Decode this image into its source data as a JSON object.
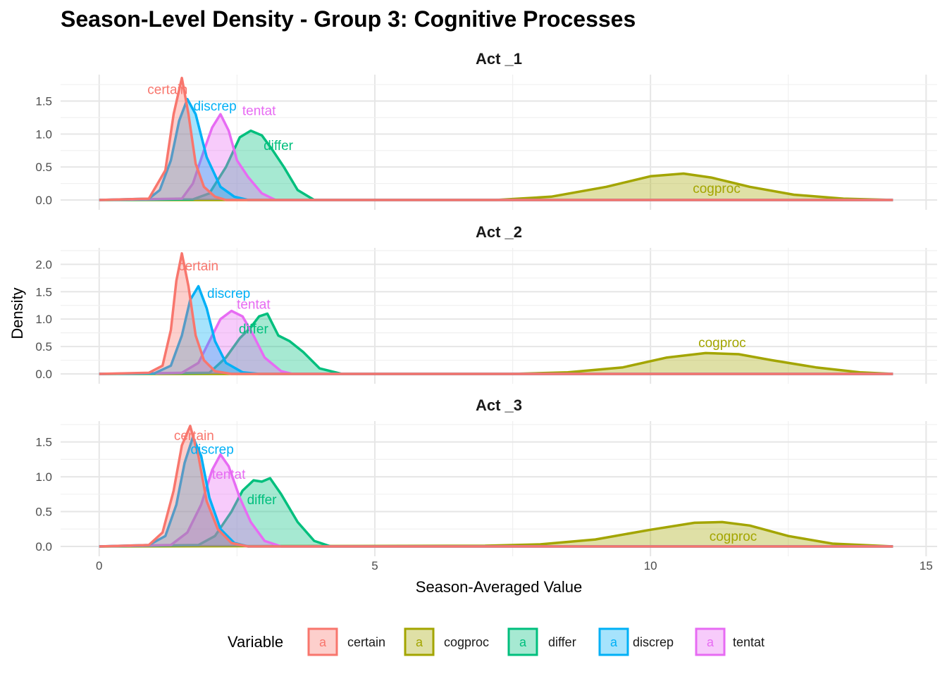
{
  "chart_data": {
    "type": "area",
    "title": "Season-Level Density -  Group 3: Cognitive Processes",
    "xlabel": "Season-Averaged Value",
    "ylabel": "Density",
    "xlim": [
      -0.7,
      15.2
    ],
    "x_ticks": [
      "0",
      "5",
      "10",
      "15"
    ],
    "grid": true,
    "legend_position": "bottom",
    "legend": {
      "title": "Variable",
      "key_letter": "a",
      "items": [
        "certain",
        "cogproc",
        "differ",
        "discrep",
        "tentat"
      ]
    },
    "colors": {
      "certain": "#F8766D",
      "cogproc": "#A3A500",
      "differ": "#00BF7D",
      "discrep": "#00B0F6",
      "tentat": "#E76BF3"
    },
    "panels": [
      {
        "strip": "Act _1",
        "ylim": [
          0,
          1.9
        ],
        "y_ticks": [
          "0.0",
          "0.5",
          "1.0",
          "1.5"
        ],
        "series": [
          {
            "name": "certain",
            "x": [
              0,
              0.9,
              1.2,
              1.35,
              1.5,
              1.62,
              1.75,
              1.9,
              2.1,
              2.3,
              14.4
            ],
            "values": [
              0,
              0.02,
              0.45,
              1.3,
              1.85,
              1.3,
              0.55,
              0.2,
              0.05,
              0,
              0
            ]
          },
          {
            "name": "discrep",
            "x": [
              0,
              0.9,
              1.1,
              1.3,
              1.45,
              1.6,
              1.75,
              1.95,
              2.2,
              2.45,
              2.7,
              14.4
            ],
            "values": [
              0,
              0.02,
              0.15,
              0.6,
              1.2,
              1.53,
              1.3,
              0.65,
              0.2,
              0.05,
              0,
              0
            ]
          },
          {
            "name": "tentat",
            "x": [
              0,
              1.5,
              1.7,
              1.9,
              2.05,
              2.2,
              2.35,
              2.5,
              2.7,
              2.95,
              3.2,
              14.4
            ],
            "values": [
              0,
              0.02,
              0.25,
              0.75,
              1.1,
              1.3,
              1.05,
              0.6,
              0.35,
              0.1,
              0,
              0
            ]
          },
          {
            "name": "differ",
            "x": [
              0,
              1.7,
              2.0,
              2.3,
              2.55,
              2.75,
              2.95,
              3.15,
              3.35,
              3.6,
              3.9,
              14.4
            ],
            "values": [
              0,
              0.01,
              0.1,
              0.5,
              0.95,
              1.05,
              0.98,
              0.75,
              0.5,
              0.15,
              0,
              0
            ]
          },
          {
            "name": "cogproc",
            "x": [
              0,
              7.2,
              8.2,
              9.2,
              10.0,
              10.6,
              11.1,
              11.8,
              12.6,
              13.5,
              14.4
            ],
            "values": [
              0,
              0.0,
              0.05,
              0.2,
              0.36,
              0.4,
              0.34,
              0.2,
              0.08,
              0.02,
              0
            ]
          }
        ],
        "labels": [
          {
            "text": "certain",
            "series": "certain",
            "x": 1.24,
            "y": 1.68
          },
          {
            "text": "discrep",
            "series": "discrep",
            "x": 2.1,
            "y": 1.43
          },
          {
            "text": "tentat",
            "series": "tentat",
            "x": 2.9,
            "y": 1.36
          },
          {
            "text": "differ",
            "series": "differ",
            "x": 3.25,
            "y": 0.83
          },
          {
            "text": "cogproc",
            "series": "cogproc",
            "x": 11.2,
            "y": 0.18
          }
        ]
      },
      {
        "strip": "Act _2",
        "ylim": [
          0,
          2.3
        ],
        "y_ticks": [
          "0.0",
          "0.5",
          "1.0",
          "1.5",
          "2.0"
        ],
        "series": [
          {
            "name": "certain",
            "x": [
              0,
              0.9,
              1.15,
              1.3,
              1.4,
              1.5,
              1.62,
              1.75,
              1.9,
              2.1,
              2.4,
              14.4
            ],
            "values": [
              0,
              0.02,
              0.15,
              0.8,
              1.7,
              2.2,
              1.6,
              0.7,
              0.25,
              0.05,
              0,
              0
            ]
          },
          {
            "name": "discrep",
            "x": [
              0,
              1.0,
              1.3,
              1.5,
              1.65,
              1.8,
              1.95,
              2.1,
              2.3,
              2.6,
              2.9,
              14.4
            ],
            "values": [
              0,
              0.01,
              0.15,
              0.7,
              1.35,
              1.6,
              1.2,
              0.6,
              0.2,
              0.03,
              0,
              0
            ]
          },
          {
            "name": "tentat",
            "x": [
              0,
              1.5,
              1.8,
              2.0,
              2.2,
              2.4,
              2.6,
              2.8,
              3.0,
              3.3,
              3.5,
              14.4
            ],
            "values": [
              0,
              0.02,
              0.2,
              0.6,
              1.0,
              1.15,
              1.05,
              0.7,
              0.3,
              0.05,
              0,
              0
            ]
          },
          {
            "name": "differ",
            "x": [
              0,
              2.0,
              2.3,
              2.55,
              2.75,
              2.9,
              3.05,
              3.25,
              3.45,
              3.7,
              4.0,
              4.4,
              14.4
            ],
            "values": [
              0,
              0.02,
              0.3,
              0.65,
              0.85,
              1.05,
              1.1,
              0.7,
              0.6,
              0.4,
              0.1,
              0,
              0
            ]
          },
          {
            "name": "cogproc",
            "x": [
              0,
              7.5,
              8.5,
              9.5,
              10.3,
              11.0,
              11.6,
              12.2,
              13.0,
              13.8,
              14.4
            ],
            "values": [
              0,
              0.0,
              0.03,
              0.12,
              0.3,
              0.38,
              0.36,
              0.25,
              0.12,
              0.03,
              0
            ]
          }
        ],
        "labels": [
          {
            "text": "certain",
            "series": "certain",
            "x": 1.8,
            "y": 1.98
          },
          {
            "text": "discrep",
            "series": "discrep",
            "x": 2.35,
            "y": 1.48
          },
          {
            "text": "tentat",
            "series": "tentat",
            "x": 2.8,
            "y": 1.28
          },
          {
            "text": "differ",
            "series": "differ",
            "x": 2.8,
            "y": 0.83
          },
          {
            "text": "cogproc",
            "series": "cogproc",
            "x": 11.3,
            "y": 0.58
          }
        ]
      },
      {
        "strip": "Act _3",
        "ylim": [
          0,
          1.8
        ],
        "y_ticks": [
          "0.0",
          "0.5",
          "1.0",
          "1.5"
        ],
        "series": [
          {
            "name": "certain",
            "x": [
              0,
              0.9,
              1.15,
              1.35,
              1.5,
              1.65,
              1.8,
              1.95,
              2.15,
              2.4,
              2.7,
              14.4
            ],
            "values": [
              0,
              0.02,
              0.2,
              0.8,
              1.45,
              1.73,
              1.3,
              0.65,
              0.25,
              0.05,
              0,
              0
            ]
          },
          {
            "name": "discrep",
            "x": [
              0,
              0.9,
              1.2,
              1.4,
              1.55,
              1.7,
              1.85,
              2.0,
              2.2,
              2.45,
              2.7,
              14.4
            ],
            "values": [
              0,
              0.02,
              0.15,
              0.6,
              1.2,
              1.57,
              1.3,
              0.7,
              0.25,
              0.05,
              0,
              0
            ]
          },
          {
            "name": "tentat",
            "x": [
              0,
              1.3,
              1.6,
              1.85,
              2.05,
              2.2,
              2.35,
              2.55,
              2.75,
              3.0,
              3.3,
              14.4
            ],
            "values": [
              0,
              0.02,
              0.2,
              0.6,
              1.1,
              1.32,
              1.15,
              0.7,
              0.35,
              0.08,
              0,
              0
            ]
          },
          {
            "name": "differ",
            "x": [
              0,
              1.8,
              2.1,
              2.4,
              2.6,
              2.8,
              2.95,
              3.1,
              3.3,
              3.6,
              3.9,
              4.2,
              14.4
            ],
            "values": [
              0,
              0.02,
              0.15,
              0.5,
              0.8,
              0.95,
              0.93,
              0.98,
              0.75,
              0.35,
              0.08,
              0,
              0
            ]
          },
          {
            "name": "cogproc",
            "x": [
              0,
              7.0,
              8.0,
              9.0,
              10.0,
              10.8,
              11.3,
              11.8,
              12.5,
              13.3,
              14.4
            ],
            "values": [
              0,
              0.01,
              0.03,
              0.1,
              0.24,
              0.34,
              0.35,
              0.3,
              0.15,
              0.04,
              0
            ]
          }
        ],
        "labels": [
          {
            "text": "certain",
            "series": "certain",
            "x": 1.72,
            "y": 1.6
          },
          {
            "text": "discrep",
            "series": "discrep",
            "x": 2.05,
            "y": 1.4
          },
          {
            "text": "tentat",
            "series": "tentat",
            "x": 2.35,
            "y": 1.04
          },
          {
            "text": "differ",
            "series": "differ",
            "x": 2.95,
            "y": 0.68
          },
          {
            "text": "cogproc",
            "series": "cogproc",
            "x": 11.5,
            "y": 0.15
          }
        ]
      }
    ]
  }
}
